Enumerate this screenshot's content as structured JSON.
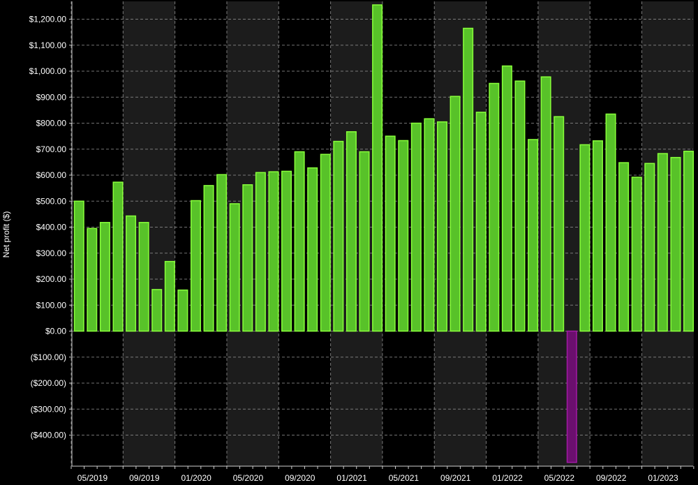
{
  "colors": {
    "background": "#000000",
    "band_alt": "#1c1c1c",
    "grid": "#9a9a9a",
    "positive_fill": "#58c229",
    "positive_stroke": "#88ff3a",
    "negative_fill": "#6b0f6e",
    "negative_stroke": "#a21aa5",
    "text": "#ffffff"
  },
  "chart_data": {
    "type": "bar",
    "ylabel": "Net profit ($)",
    "ylim": [
      -500,
      1260
    ],
    "grid": true,
    "y_ticks": [
      {
        "value": 1200,
        "label": "$1,200.00"
      },
      {
        "value": 1100,
        "label": "$1,100.00"
      },
      {
        "value": 1000,
        "label": "$1,000.00"
      },
      {
        "value": 900,
        "label": "$900.00"
      },
      {
        "value": 800,
        "label": "$800.00"
      },
      {
        "value": 700,
        "label": "$700.00"
      },
      {
        "value": 600,
        "label": "$600.00"
      },
      {
        "value": 500,
        "label": "$500.00"
      },
      {
        "value": 400,
        "label": "$400.00"
      },
      {
        "value": 300,
        "label": "$300.00"
      },
      {
        "value": 200,
        "label": "$200.00"
      },
      {
        "value": 100,
        "label": "$100.00"
      },
      {
        "value": 0,
        "label": "$0.00"
      },
      {
        "value": -100,
        "label": "($100.00)"
      },
      {
        "value": -200,
        "label": "($200.00)"
      },
      {
        "value": -300,
        "label": "($300.00)"
      },
      {
        "value": -400,
        "label": "($400.00)"
      }
    ],
    "x_tick_labels": [
      "05/2019",
      "09/2019",
      "01/2020",
      "05/2020",
      "09/2020",
      "01/2021",
      "05/2021",
      "09/2021",
      "01/2022",
      "05/2022",
      "09/2022",
      "01/2023"
    ],
    "categories": [
      "05/2019",
      "06/2019",
      "07/2019",
      "08/2019",
      "09/2019",
      "10/2019",
      "11/2019",
      "12/2019",
      "01/2020",
      "02/2020",
      "03/2020",
      "04/2020",
      "05/2020",
      "06/2020",
      "07/2020",
      "08/2020",
      "09/2020",
      "10/2020",
      "11/2020",
      "12/2020",
      "01/2021",
      "02/2021",
      "03/2021",
      "04/2021",
      "05/2021",
      "06/2021",
      "07/2021",
      "08/2021",
      "09/2021",
      "10/2021",
      "11/2021",
      "12/2021",
      "01/2022",
      "02/2022",
      "03/2022",
      "04/2022",
      "05/2022",
      "06/2022",
      "07/2022",
      "08/2022",
      "09/2022",
      "10/2022",
      "11/2022",
      "12/2022",
      "01/2023",
      "02/2023",
      "03/2023",
      "04/2023"
    ],
    "values": [
      500,
      395,
      418,
      573,
      443,
      418,
      160,
      268,
      158,
      502,
      560,
      602,
      490,
      563,
      610,
      613,
      615,
      690,
      628,
      680,
      730,
      767,
      690,
      1255,
      750,
      733,
      800,
      817,
      805,
      903,
      1165,
      842,
      953,
      1020,
      962,
      737,
      978,
      825,
      -505,
      717,
      732,
      835,
      648,
      592,
      645,
      683,
      668,
      692
    ]
  }
}
